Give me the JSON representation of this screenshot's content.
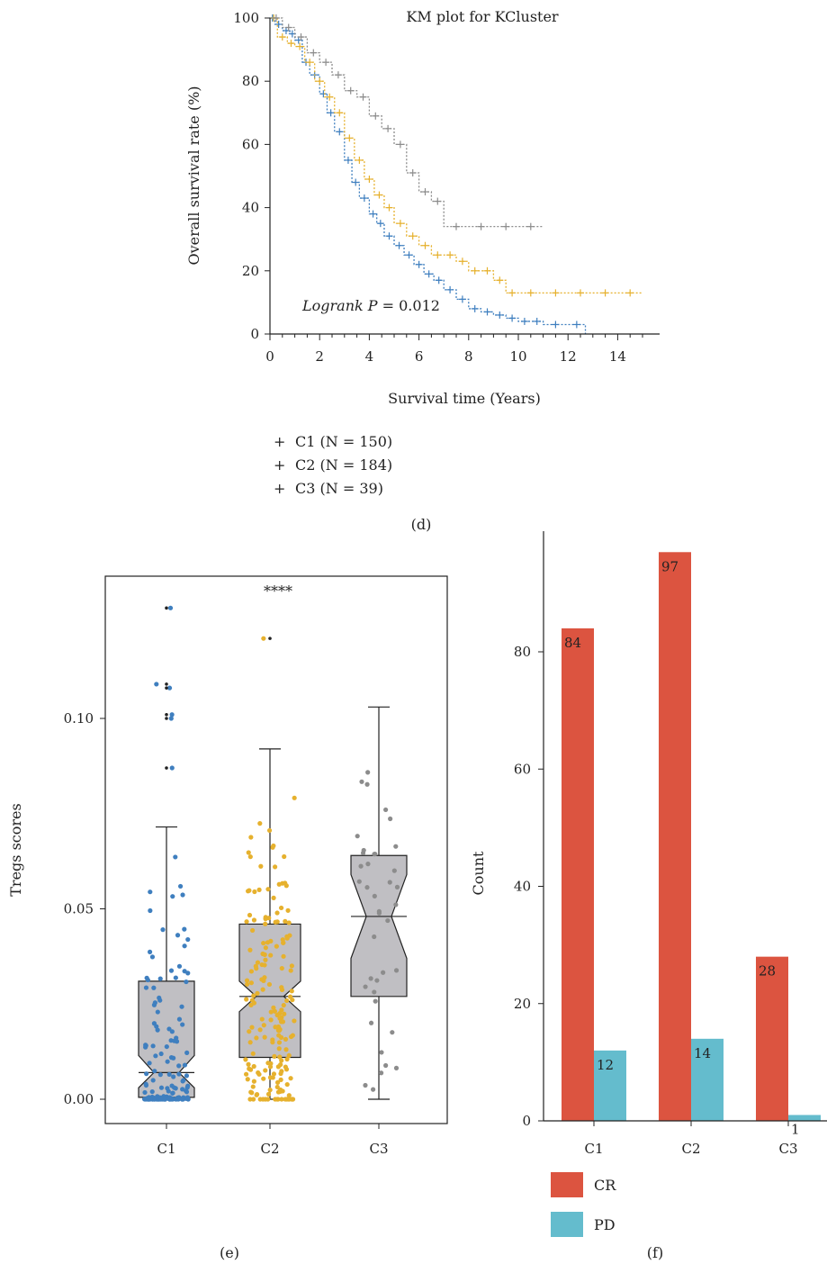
{
  "chart_data": [
    {
      "type": "line",
      "panel_label": "(d)",
      "title": "KM plot for KCluster",
      "xlabel": "Survival time (Years)",
      "ylabel": "Overall survival rate (%)",
      "xlim": [
        0,
        15
      ],
      "ylim": [
        0,
        100
      ],
      "x_ticks": [
        "0",
        "2",
        "4",
        "6",
        "8",
        "10",
        "12",
        "14"
      ],
      "y_ticks": [
        "0",
        "20",
        "40",
        "60",
        "80",
        "100"
      ],
      "annotation_italic": "Logrank P",
      "annotation_value": " = 0.012",
      "legend_position": "bottom-left",
      "series": [
        {
          "name": "C1 (N = 150)",
          "color": "#3f7fbf",
          "x": [
            0,
            0.2,
            0.5,
            0.8,
            1.0,
            1.3,
            1.6,
            2.0,
            2.3,
            2.6,
            3.0,
            3.3,
            3.6,
            4.0,
            4.3,
            4.6,
            5.0,
            5.4,
            5.8,
            6.2,
            6.6,
            7.0,
            7.5,
            8.0,
            8.5,
            9.0,
            9.5,
            10.0,
            10.5,
            11.0,
            12.0,
            12.7
          ],
          "y": [
            100,
            98,
            96,
            95,
            93,
            86,
            82,
            76,
            70,
            64,
            55,
            48,
            43,
            38,
            35,
            31,
            28,
            25,
            22,
            19,
            17,
            14,
            11,
            8,
            7,
            6,
            5,
            4,
            4,
            3,
            3,
            0
          ]
        },
        {
          "name": "C2 (N = 184)",
          "color": "#e6b12e",
          "x": [
            0,
            0.3,
            0.7,
            1.0,
            1.4,
            1.8,
            2.2,
            2.6,
            3.0,
            3.4,
            3.8,
            4.2,
            4.6,
            5.0,
            5.5,
            6.0,
            6.5,
            7.0,
            7.5,
            8.0,
            8.5,
            9.0,
            9.5,
            10.0,
            11.0,
            12.0,
            13.0,
            14.0,
            15.0
          ],
          "y": [
            100,
            94,
            92,
            91,
            86,
            80,
            75,
            70,
            62,
            55,
            49,
            44,
            40,
            35,
            31,
            28,
            25,
            25,
            23,
            20,
            20,
            17,
            13,
            13,
            13,
            13,
            13,
            13,
            13
          ]
        },
        {
          "name": "C3 (N = 39)",
          "color": "#8c8c8c",
          "x": [
            0,
            0.5,
            1.0,
            1.5,
            2.0,
            2.5,
            3.0,
            3.5,
            4.0,
            4.5,
            5.0,
            5.5,
            6.0,
            6.5,
            7.0,
            8.0,
            9.0,
            10.0,
            11.0
          ],
          "y": [
            100,
            97,
            94,
            89,
            86,
            82,
            77,
            75,
            69,
            65,
            60,
            51,
            45,
            42,
            34,
            34,
            34,
            34,
            34
          ]
        }
      ]
    },
    {
      "type": "box",
      "panel_label": "(e)",
      "ylabel": "Tregs scores",
      "ylim": [
        -0.005,
        0.14
      ],
      "y_ticks": [
        0.0,
        0.05,
        0.1
      ],
      "y_tick_labels": [
        "0.00",
        "0.05",
        "0.10"
      ],
      "significance": "****",
      "categories": [
        "C1",
        "C2",
        "C3"
      ],
      "box_fill": "#c0bfc3",
      "groups": [
        {
          "name": "C1",
          "color": "#3f7fbf",
          "min": 0.0,
          "q1": 0.0005,
          "median": 0.007,
          "q3": 0.031,
          "max": 0.0715,
          "notch_low": 0.003,
          "notch_high": 0.0115,
          "outliers": [
            0.087,
            0.1,
            0.101,
            0.108,
            0.109,
            0.129
          ],
          "n_points": 150
        },
        {
          "name": "C2",
          "color": "#e6b12e",
          "min": 0.0,
          "q1": 0.011,
          "median": 0.027,
          "q3": 0.046,
          "max": 0.092,
          "notch_low": 0.023,
          "notch_high": 0.031,
          "outliers": [
            0.121
          ],
          "n_points": 184
        },
        {
          "name": "C3",
          "color": "#8c8c8c",
          "min": 0.0,
          "q1": 0.027,
          "median": 0.048,
          "q3": 0.064,
          "max": 0.103,
          "notch_low": 0.037,
          "notch_high": 0.059,
          "outliers": [],
          "n_points": 39
        }
      ]
    },
    {
      "type": "bar",
      "panel_label": "(f)",
      "ylabel": "Count",
      "ylim": [
        0,
        100
      ],
      "y_ticks": [
        "0",
        "20",
        "40",
        "60",
        "80"
      ],
      "categories": [
        "C1",
        "C2",
        "C3"
      ],
      "legend_position": "bottom-left",
      "series": [
        {
          "name": "CR",
          "color": "#dc5440",
          "values": [
            84,
            97,
            28
          ]
        },
        {
          "name": "PD",
          "color": "#64bccd",
          "values": [
            12,
            14,
            1
          ]
        }
      ]
    }
  ]
}
